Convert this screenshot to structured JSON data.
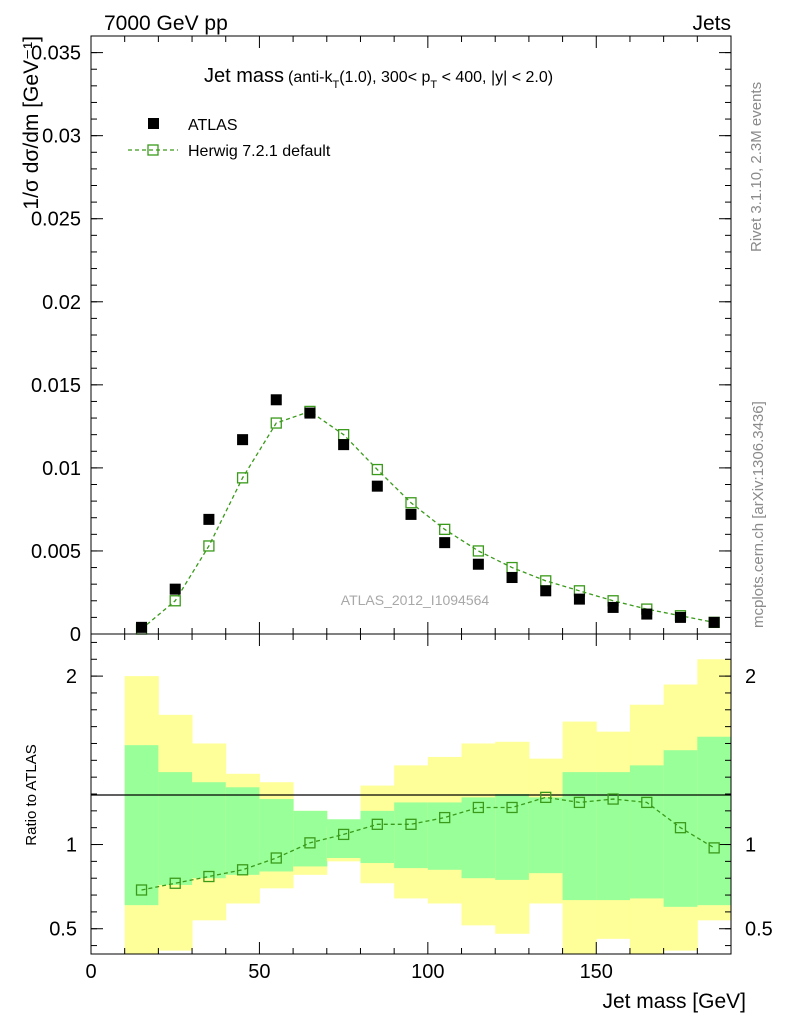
{
  "header": {
    "left": "7000 GeV pp",
    "right": "Jets",
    "side_top": "Rivet 3.1.10,  2.3M events",
    "side_bottom": "mcplots.cern.ch [arXiv:1306.3436]",
    "watermark": "ATLAS_2012_I1094564"
  },
  "colors": {
    "data": "#000000",
    "mc": "#3a9a1a",
    "band_inner": "#99ff99",
    "band_outer": "#ffff99"
  },
  "chart_data": [
    {
      "type": "scatter",
      "title_main": "Jet mass",
      "title_sub": "(anti-k",
      "title_sub_T": "T",
      "title_sub_rest1": "(1.0), 300< p",
      "title_sub_T2": "T",
      "title_sub_rest2": " < 400, |y| < 2.0)",
      "ylabel": "1/σ dσ/dm [GeV⁻¹]",
      "ylim": [
        0,
        0.036
      ],
      "xlim": [
        0,
        190
      ],
      "yticks": [
        0,
        0.005,
        0.01,
        0.015,
        0.02,
        0.025,
        0.03,
        0.035
      ],
      "ytick_labels": [
        "0",
        "0.005",
        "0.01",
        "0.015",
        "0.02",
        "0.025",
        "0.03",
        "0.035"
      ],
      "legend": [
        {
          "label": "ATLAS",
          "marker": "filled-square"
        },
        {
          "label": "Herwig 7.2.1 default",
          "marker": "open-square-dashed"
        }
      ],
      "x": [
        15,
        25,
        35,
        45,
        55,
        65,
        75,
        85,
        95,
        105,
        115,
        125,
        135,
        145,
        155,
        165,
        175,
        185
      ],
      "series": [
        {
          "name": "ATLAS",
          "values": [
            0.0004,
            0.0027,
            0.0069,
            0.0117,
            0.0141,
            0.0133,
            0.0114,
            0.0089,
            0.0072,
            0.0055,
            0.0042,
            0.0034,
            0.0026,
            0.0021,
            0.0016,
            0.0012,
            0.001,
            0.0007
          ]
        },
        {
          "name": "Herwig 7.2.1 default",
          "values": [
            0.0003,
            0.002,
            0.0053,
            0.0094,
            0.0127,
            0.0134,
            0.012,
            0.0099,
            0.0079,
            0.0063,
            0.005,
            0.004,
            0.0032,
            0.0026,
            0.002,
            0.0015,
            0.0011,
            0.0007
          ]
        }
      ]
    },
    {
      "type": "scatter",
      "ylabel": "Ratio to ATLAS",
      "xlabel": "Jet mass [GeV]",
      "xlim": [
        0,
        190
      ],
      "ylim": [
        0.35,
        2.25
      ],
      "xticks": [
        0,
        50,
        100,
        150
      ],
      "xtick_labels": [
        "0",
        "50",
        "100",
        "150"
      ],
      "yticks": [
        0.5,
        1,
        2
      ],
      "ytick_labels": [
        "0.5",
        "1",
        "2"
      ],
      "bins": [
        10,
        20,
        30,
        40,
        50,
        60,
        70,
        80,
        90,
        100,
        110,
        120,
        130,
        140,
        150,
        160,
        170,
        180,
        190
      ],
      "band_inner_lo": [
        0.64,
        0.76,
        0.8,
        0.82,
        0.84,
        0.87,
        0.92,
        0.89,
        0.86,
        0.85,
        0.8,
        0.79,
        0.83,
        0.67,
        0.67,
        0.68,
        0.63,
        0.64
      ],
      "band_inner_hi": [
        1.59,
        1.43,
        1.37,
        1.34,
        1.27,
        1.2,
        1.15,
        1.2,
        1.25,
        1.25,
        1.28,
        1.3,
        1.28,
        1.43,
        1.43,
        1.47,
        1.56,
        1.64
      ],
      "band_outer_lo": [
        0.35,
        0.37,
        0.55,
        0.65,
        0.74,
        0.82,
        0.9,
        0.77,
        0.68,
        0.65,
        0.52,
        0.47,
        0.65,
        0.35,
        0.44,
        0.35,
        0.37,
        0.55
      ],
      "band_outer_hi": [
        2.0,
        1.77,
        1.6,
        1.42,
        1.37,
        1.2,
        1.1,
        1.35,
        1.47,
        1.52,
        1.6,
        1.61,
        1.51,
        1.73,
        1.67,
        1.83,
        1.95,
        2.1
      ],
      "series": [
        {
          "name": "Herwig 7.2.1 default / ATLAS",
          "values": [
            0.73,
            0.77,
            0.81,
            0.85,
            0.92,
            1.01,
            1.06,
            1.12,
            1.12,
            1.16,
            1.22,
            1.22,
            1.28,
            1.25,
            1.27,
            1.25,
            1.1,
            0.98
          ]
        }
      ]
    }
  ]
}
